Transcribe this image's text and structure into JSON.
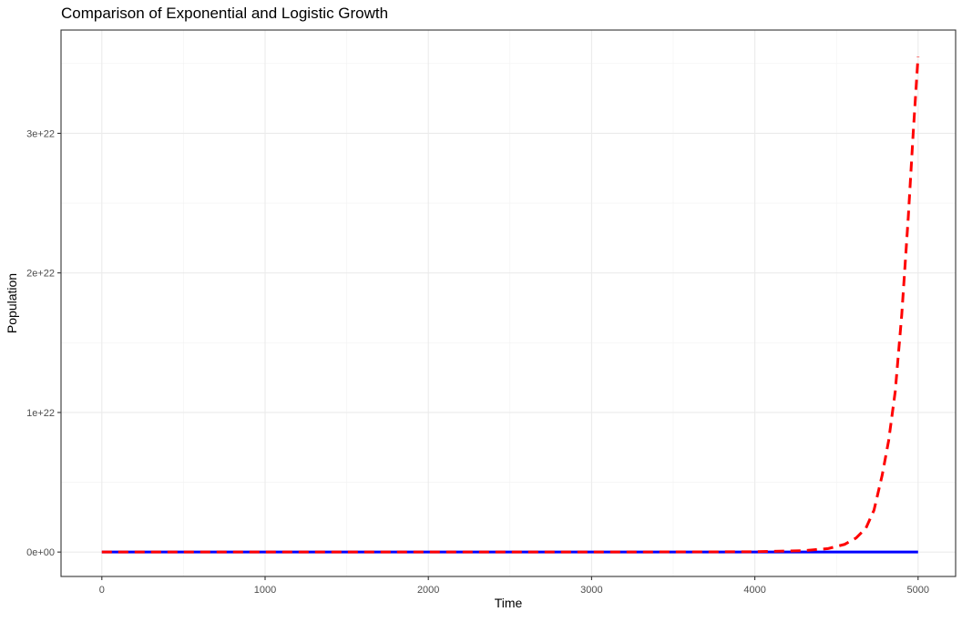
{
  "chart_data": {
    "type": "line",
    "title": "Comparison of Exponential and Logistic Growth",
    "xlabel": "Time",
    "ylabel": "Population",
    "xlim": [
      -250,
      5230
    ],
    "ylim": [
      -1.75e+21,
      3.74e+22
    ],
    "xticks": [
      0,
      1000,
      2000,
      3000,
      4000,
      5000
    ],
    "xtick_labels": [
      "0",
      "1000",
      "2000",
      "3000",
      "4000",
      "5000"
    ],
    "yticks": [
      0,
      1e+22,
      2e+22,
      3e+22
    ],
    "ytick_labels": [
      "0e+00",
      "1e+22",
      "2e+22",
      "3e+22"
    ],
    "grid": true,
    "legend": "none",
    "series": [
      {
        "style": "solid",
        "color": "#0000ff",
        "x": [
          0,
          1000,
          2000,
          3000,
          4000,
          5000
        ],
        "y": [
          0,
          0,
          0,
          0,
          0,
          0
        ]
      },
      {
        "style": "dashed",
        "color": "#ff0000",
        "x": [
          0,
          1000,
          2000,
          3000,
          4000,
          4300,
          4450,
          4550,
          4620,
          4680,
          4730,
          4780,
          4820,
          4860,
          4900,
          4940,
          4970,
          5000
        ],
        "y": [
          0,
          0,
          0,
          0,
          2e+19,
          1e+20,
          2.5e+20,
          5.5e+20,
          1e+21,
          1.7e+21,
          3e+21,
          5.5e+21,
          8e+21,
          1.15e+22,
          1.7e+22,
          2.4e+22,
          3e+22,
          3.55e+22
        ]
      }
    ]
  }
}
